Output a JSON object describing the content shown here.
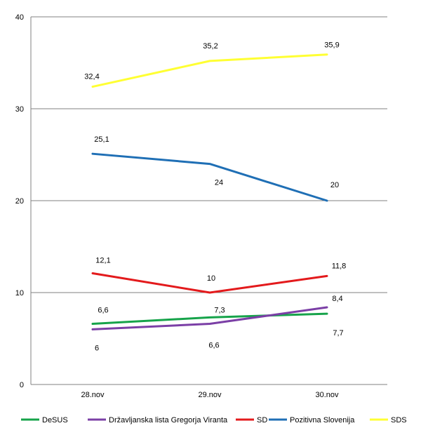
{
  "chart_data": {
    "type": "line",
    "title": "",
    "xlabel": "",
    "ylabel": "",
    "categories": [
      "28.nov",
      "29.nov",
      "30.nov"
    ],
    "ylim": [
      0,
      40
    ],
    "yticks": [
      "0",
      "10",
      "20",
      "30",
      "40"
    ],
    "grid": true,
    "legend_position": "bottom",
    "series": [
      {
        "name": "DeSUS",
        "color": "#16a34a",
        "values": [
          6.6,
          7.3,
          7.7
        ],
        "labels": [
          "6,6",
          "7,3",
          "7,7"
        ]
      },
      {
        "name": "Državljanska lista Gregorja Viranta",
        "color": "#7b3fa6",
        "values": [
          6,
          6.6,
          8.4
        ],
        "labels": [
          "6",
          "6,6",
          "8,4"
        ]
      },
      {
        "name": "SD",
        "color": "#e31a1c",
        "values": [
          12.1,
          10,
          11.8
        ],
        "labels": [
          "12,1",
          "10",
          "11,8"
        ]
      },
      {
        "name": "Pozitivna Slovenija",
        "color": "#1f6fb5",
        "values": [
          25.1,
          24,
          20
        ],
        "labels": [
          "25,1",
          "24",
          "20"
        ]
      },
      {
        "name": "SDS",
        "color": "#ffff33",
        "values": [
          32.4,
          35.2,
          35.9
        ],
        "labels": [
          "32,4",
          "35,2",
          "35,9"
        ]
      }
    ]
  }
}
